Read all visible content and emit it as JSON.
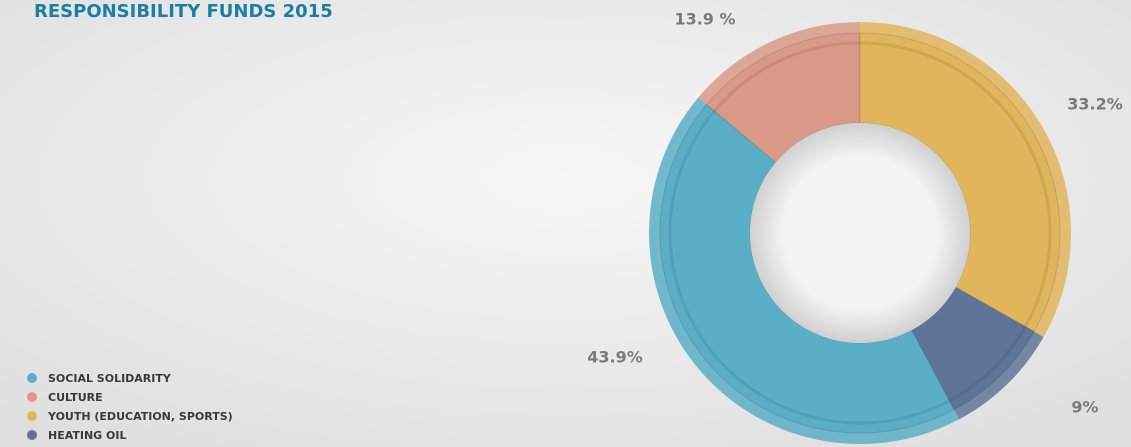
{
  "chart_data": {
    "type": "donut",
    "title": "RESPONSIBILITY FUNDS 2015",
    "categories": [
      "SOCIAL SOLIDARITY",
      "CULTURE",
      "YOUTH (EDUCATION, SPORTS)",
      "HEATING OIL"
    ],
    "values": [
      43.9,
      13.9,
      33.2,
      9
    ],
    "value_labels": [
      "43.9%",
      "13.9 %",
      "33.2%",
      "9%"
    ],
    "colors": [
      "#5aaec6",
      "#d89a87",
      "#e0b55c",
      "#5f7598"
    ]
  }
}
